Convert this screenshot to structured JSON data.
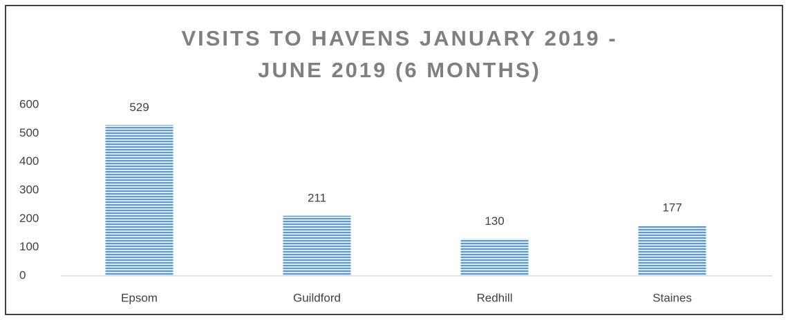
{
  "chart_data": {
    "type": "bar",
    "title": [
      "VISITS TO HAVENS JANUARY 2019 -",
      "JUNE 2019 (6 MONTHS)"
    ],
    "categories": [
      "Epsom",
      "Guildford",
      "Redhill",
      "Staines"
    ],
    "values": [
      529,
      211,
      130,
      177
    ],
    "color": "#5b9bd5",
    "ylim": [
      0,
      600
    ],
    "yticks": [
      0,
      100,
      200,
      300,
      400,
      500,
      600
    ],
    "grid": false,
    "data_labels": true
  }
}
